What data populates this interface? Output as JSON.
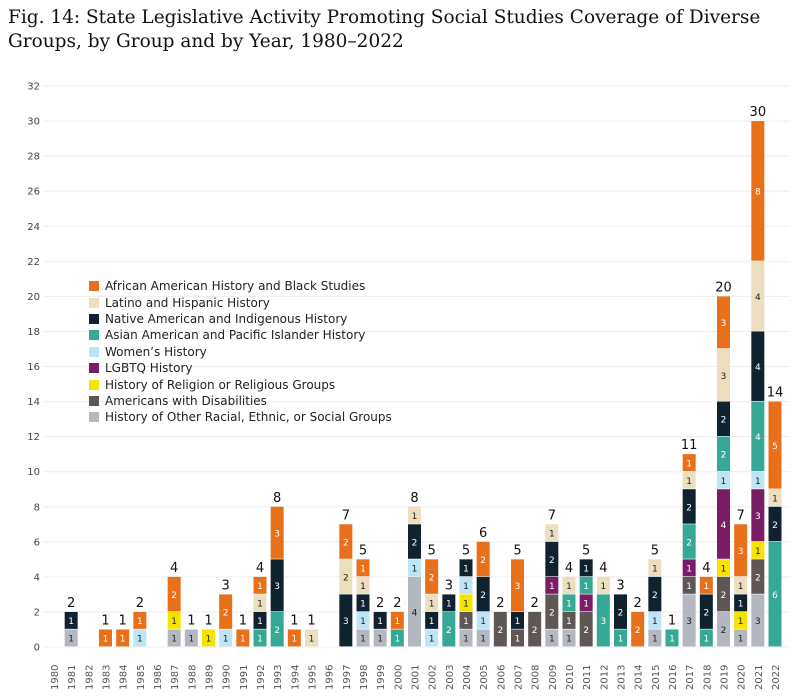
{
  "chart_data": {
    "type": "bar",
    "stacked": true,
    "title": "Fig. 14: State Legislative Activity Promoting Social Studies Coverage of Diverse Groups, by Group and by Year, 1980–2022",
    "xlabel": "",
    "ylabel": "",
    "ylim": [
      0,
      32
    ],
    "yticks": [
      0,
      2,
      4,
      6,
      8,
      10,
      12,
      14,
      16,
      18,
      20,
      22,
      24,
      26,
      28,
      30,
      32
    ],
    "grid": true,
    "legend_position": "left",
    "categories": [
      "1980",
      "1981",
      "1982",
      "1983",
      "1984",
      "1985",
      "1986",
      "1987",
      "1988",
      "1989",
      "1990",
      "1991",
      "1992",
      "1993",
      "1994",
      "1995",
      "1996",
      "1997",
      "1998",
      "1999",
      "2000",
      "2001",
      "2002",
      "2003",
      "2004",
      "2005",
      "2006",
      "2007",
      "2008",
      "2009",
      "2010",
      "2011",
      "2012",
      "2013",
      "2014",
      "2015",
      "2016",
      "2017",
      "2018",
      "2019",
      "2020",
      "2021",
      "2022"
    ],
    "series": [
      {
        "name": "African American History and Black Studies",
        "color": "#e8701a",
        "values": [
          0,
          0,
          0,
          1,
          1,
          1,
          0,
          2,
          0,
          0,
          2,
          1,
          1,
          3,
          1,
          0,
          0,
          2,
          1,
          0,
          1,
          0,
          2,
          0,
          0,
          2,
          0,
          3,
          0,
          0,
          0,
          0,
          0,
          0,
          2,
          0,
          0,
          1,
          1,
          3,
          3,
          8,
          5
        ]
      },
      {
        "name": "Latino and Hispanic History",
        "color": "#ebdfbf",
        "values": [
          0,
          0,
          0,
          0,
          0,
          0,
          0,
          0,
          0,
          0,
          0,
          0,
          1,
          0,
          0,
          1,
          0,
          2,
          1,
          0,
          0,
          1,
          1,
          0,
          0,
          0,
          0,
          0,
          0,
          1,
          1,
          0,
          1,
          0,
          0,
          1,
          0,
          1,
          0,
          3,
          1,
          4,
          1
        ]
      },
      {
        "name": "Native American and Indigenous History",
        "color": "#0f222e",
        "values": [
          0,
          1,
          0,
          0,
          0,
          0,
          0,
          0,
          0,
          0,
          0,
          0,
          1,
          3,
          0,
          0,
          0,
          3,
          1,
          1,
          0,
          2,
          1,
          1,
          1,
          2,
          0,
          1,
          0,
          2,
          0,
          1,
          0,
          2,
          0,
          2,
          0,
          2,
          2,
          2,
          1,
          4,
          2
        ]
      },
      {
        "name": "Asian American and Pacific Islander History",
        "color": "#35a896",
        "values": [
          0,
          0,
          0,
          0,
          0,
          0,
          0,
          0,
          0,
          0,
          0,
          0,
          1,
          2,
          0,
          0,
          0,
          0,
          0,
          0,
          1,
          0,
          0,
          2,
          0,
          0,
          0,
          0,
          0,
          0,
          1,
          1,
          3,
          1,
          0,
          0,
          1,
          2,
          1,
          2,
          0,
          4,
          6
        ]
      },
      {
        "name": "Women’s History",
        "color": "#bfe4f5",
        "values": [
          0,
          0,
          0,
          0,
          0,
          1,
          0,
          0,
          0,
          0,
          1,
          0,
          0,
          0,
          0,
          0,
          0,
          0,
          1,
          0,
          0,
          1,
          1,
          0,
          1,
          1,
          0,
          0,
          0,
          0,
          0,
          0,
          0,
          0,
          0,
          1,
          0,
          0,
          0,
          1,
          0,
          1,
          0
        ]
      },
      {
        "name": "LGBTQ History",
        "color": "#7b1c66",
        "values": [
          0,
          0,
          0,
          0,
          0,
          0,
          0,
          0,
          0,
          0,
          0,
          0,
          0,
          0,
          0,
          0,
          0,
          0,
          0,
          0,
          0,
          0,
          0,
          0,
          0,
          0,
          0,
          0,
          0,
          1,
          0,
          1,
          0,
          0,
          0,
          0,
          0,
          1,
          0,
          4,
          0,
          3,
          0
        ]
      },
      {
        "name": "History of Religion or Religious Groups",
        "color": "#f5e400",
        "values": [
          0,
          0,
          0,
          0,
          0,
          0,
          0,
          1,
          0,
          1,
          0,
          0,
          0,
          0,
          0,
          0,
          0,
          0,
          0,
          0,
          0,
          0,
          0,
          0,
          1,
          0,
          0,
          0,
          0,
          0,
          0,
          0,
          0,
          0,
          0,
          0,
          0,
          0,
          0,
          1,
          1,
          1,
          0
        ]
      },
      {
        "name": "Americans with Disabilities",
        "color": "#5e5755",
        "values": [
          0,
          0,
          0,
          0,
          0,
          0,
          0,
          0,
          0,
          0,
          0,
          0,
          0,
          0,
          0,
          0,
          0,
          0,
          0,
          0,
          0,
          0,
          0,
          0,
          1,
          0,
          2,
          1,
          2,
          2,
          1,
          2,
          0,
          0,
          0,
          0,
          0,
          1,
          0,
          2,
          0,
          2,
          0
        ]
      },
      {
        "name": "History of Other Racial, Ethnic, or Social Groups",
        "color": "#b3b8c0",
        "values": [
          0,
          1,
          0,
          0,
          0,
          0,
          0,
          1,
          1,
          0,
          0,
          0,
          0,
          0,
          0,
          0,
          0,
          0,
          1,
          1,
          0,
          4,
          0,
          0,
          1,
          1,
          0,
          0,
          0,
          1,
          1,
          0,
          0,
          0,
          0,
          1,
          0,
          3,
          0,
          2,
          1,
          3,
          0
        ]
      }
    ],
    "totals": [
      null,
      2,
      null,
      1,
      1,
      2,
      null,
      4,
      1,
      1,
      3,
      1,
      4,
      8,
      1,
      1,
      null,
      7,
      5,
      2,
      2,
      8,
      5,
      3,
      5,
      6,
      2,
      5,
      2,
      7,
      4,
      5,
      4,
      3,
      2,
      5,
      1,
      11,
      4,
      20,
      7,
      30,
      14
    ]
  }
}
